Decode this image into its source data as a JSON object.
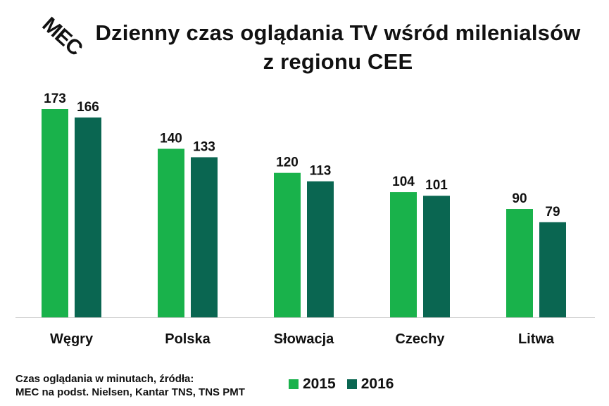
{
  "logo": {
    "text": "MEC"
  },
  "title": {
    "line1": "Dzienny czas oglądania TV wśród milenialsów",
    "line2": "z regionu CEE"
  },
  "source": {
    "line1": "Czas oglądania w minutach, źródła:",
    "line2": "MEC na podst. Nielsen, Kantar TNS, TNS PMT"
  },
  "colors": {
    "s2015": "#19b24b",
    "s2016": "#0a6651"
  },
  "chart_data": {
    "type": "bar",
    "categories": [
      "Węgry",
      "Polska",
      "Słowacja",
      "Czechy",
      "Litwa"
    ],
    "series": [
      {
        "name": "2015",
        "values": [
          173,
          140,
          120,
          104,
          90
        ]
      },
      {
        "name": "2016",
        "values": [
          166,
          133,
          113,
          101,
          79
        ]
      }
    ],
    "ylim": [
      0,
      173
    ],
    "grid": false,
    "legend": "bottom"
  }
}
